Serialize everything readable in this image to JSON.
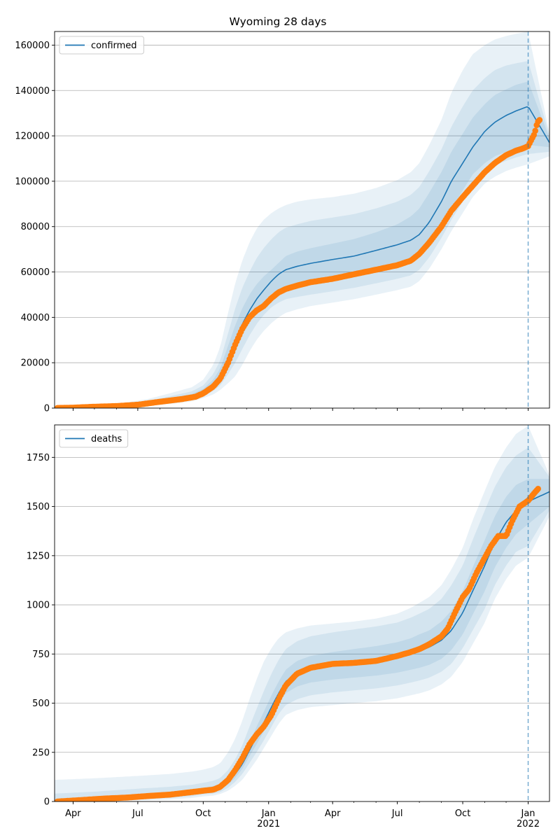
{
  "chart_data": [
    {
      "type": "line",
      "title": "Wyoming 28 days",
      "xlabel": "",
      "ylabel": "",
      "ylim": [
        0,
        166000
      ],
      "y_ticks": [
        0,
        20000,
        40000,
        60000,
        80000,
        100000,
        120000,
        140000,
        160000
      ],
      "y_tick_labels": [
        "0",
        "20000",
        "40000",
        "60000",
        "80000",
        "100000",
        "120000",
        "140000",
        "160000"
      ],
      "x_range": [
        "2020-03-06",
        "2022-01-31"
      ],
      "forecast_start": "2022-01-01",
      "grid": "horizontal",
      "legend_position": "top-left",
      "series": [
        {
          "name": "confirmed",
          "kind": "model-median",
          "color": "#1f77b4",
          "x": [
            "2020-03-06",
            "2020-04-15",
            "2020-06-01",
            "2020-07-15",
            "2020-08-15",
            "2020-09-15",
            "2020-10-01",
            "2020-10-15",
            "2020-10-25",
            "2020-11-05",
            "2020-11-15",
            "2020-11-25",
            "2020-12-05",
            "2020-12-15",
            "2020-12-25",
            "2021-01-05",
            "2021-01-15",
            "2021-01-25",
            "2021-02-10",
            "2021-03-01",
            "2021-04-01",
            "2021-05-01",
            "2021-06-01",
            "2021-07-01",
            "2021-07-20",
            "2021-08-01",
            "2021-08-15",
            "2021-09-01",
            "2021-09-15",
            "2021-10-01",
            "2021-10-15",
            "2021-11-01",
            "2021-11-15",
            "2021-12-01",
            "2021-12-15",
            "2022-01-01",
            "2022-01-31"
          ],
          "y": [
            100,
            300,
            700,
            2000,
            3500,
            5000,
            7000,
            10000,
            14000,
            22000,
            30000,
            37000,
            43000,
            48000,
            52000,
            56000,
            59000,
            61000,
            62500,
            63800,
            65500,
            67000,
            69500,
            72000,
            74000,
            76500,
            82000,
            91000,
            100000,
            108000,
            115000,
            122000,
            126000,
            129000,
            131000,
            133000,
            117000
          ],
          "band_1": {
            "lower": [
              0,
              200,
              500,
              1500,
              2800,
              4400,
              6200,
              9000,
              12000,
              18000,
              25000,
              32000,
              38000,
              43000,
              47000,
              50500,
              52000,
              53500,
              54500,
              55500,
              57000,
              58500,
              60500,
              62500,
              64000,
              66500,
              72000,
              80000,
              88000,
              96000,
              103000,
              108000,
              111000,
              113000,
              114500,
              116000,
              115000
            ],
            "upper": [
              200,
              450,
              1000,
              2600,
              4400,
              6200,
              8500,
              12500,
              17500,
              27500,
              36500,
              44000,
              50000,
              54500,
              58000,
              61000,
              64000,
              67000,
              69000,
              70500,
              72500,
              74500,
              77500,
              81000,
              84500,
              88000,
              95000,
              104000,
              113000,
              121000,
              128000,
              134000,
              138000,
              140500,
              142500,
              144000,
              119000
            ]
          },
          "band_2": {
            "lower": [
              0,
              100,
              350,
              1200,
              2300,
              3800,
              5400,
              7500,
              10000,
              15000,
              20000,
              26000,
              32000,
              37000,
              41000,
              44500,
              46500,
              48000,
              49000,
              50000,
              51500,
              53000,
              55000,
              57000,
              58500,
              61000,
              66500,
              75000,
              83000,
              91000,
              98000,
              104000,
              107000,
              109000,
              110500,
              112000,
              113000
            ],
            "upper": [
              300,
              600,
              1300,
              3200,
              5200,
              7400,
              10000,
              15000,
              21000,
              33000,
              44000,
              53000,
              60000,
              66000,
              70500,
              74500,
              77500,
              79500,
              81000,
              82500,
              84000,
              85500,
              88000,
              91000,
              94000,
              97500,
              104500,
              114000,
              124000,
              133000,
              140000,
              145500,
              149000,
              151000,
              152000,
              153000,
              120000
            ]
          },
          "band_3": {
            "lower": [
              0,
              50,
              200,
              900,
              1800,
              3000,
              4400,
              6000,
              8000,
              11000,
              14000,
              19000,
              25000,
              30000,
              34000,
              37500,
              40000,
              42000,
              43500,
              45000,
              46500,
              48000,
              50000,
              52000,
              53500,
              56000,
              61500,
              70000,
              78000,
              86000,
              93000,
              99000,
              102000,
              104500,
              106000,
              107500,
              111000
            ],
            "upper": [
              500,
              900,
              1800,
              4000,
              6500,
              9200,
              12500,
              19000,
              27000,
              42000,
              55000,
              65000,
              73000,
              79000,
              83000,
              86000,
              88000,
              89500,
              91000,
              92000,
              93000,
              94500,
              97000,
              100500,
              104000,
              108000,
              116000,
              127000,
              139000,
              149000,
              156000,
              160000,
              162500,
              164000,
              165000,
              166000,
              121000
            ]
          }
        },
        {
          "name": "",
          "kind": "observed",
          "color": "#ff7f0e",
          "x": [
            "2020-03-10",
            "2020-04-01",
            "2020-05-01",
            "2020-06-01",
            "2020-07-01",
            "2020-08-01",
            "2020-09-01",
            "2020-09-20",
            "2020-10-01",
            "2020-10-15",
            "2020-10-25",
            "2020-11-05",
            "2020-11-15",
            "2020-11-25",
            "2020-12-05",
            "2020-12-15",
            "2020-12-25",
            "2021-01-05",
            "2021-01-15",
            "2021-01-25",
            "2021-02-10",
            "2021-03-01",
            "2021-04-01",
            "2021-05-01",
            "2021-06-01",
            "2021-07-01",
            "2021-07-20",
            "2021-08-01",
            "2021-08-15",
            "2021-09-01",
            "2021-09-15",
            "2021-10-01",
            "2021-10-15",
            "2021-11-01",
            "2021-11-15",
            "2021-12-01",
            "2021-12-15",
            "2021-12-25",
            "2022-01-01",
            "2022-01-05",
            "2022-01-10",
            "2022-01-14",
            "2022-01-17"
          ],
          "y": [
            50,
            200,
            600,
            900,
            1500,
            2800,
            4000,
            5000,
            6500,
            9500,
            13000,
            20000,
            28000,
            35000,
            40000,
            43000,
            45000,
            48500,
            51000,
            52500,
            54000,
            55500,
            57000,
            59000,
            61000,
            63000,
            65000,
            68000,
            73000,
            80000,
            87000,
            93000,
            98000,
            104000,
            108000,
            111500,
            113500,
            114500,
            115500,
            118000,
            121000,
            126000,
            127000
          ]
        }
      ]
    },
    {
      "type": "line",
      "title": "",
      "xlabel": "",
      "ylabel": "",
      "ylim": [
        0,
        1915
      ],
      "y_ticks": [
        0,
        250,
        500,
        750,
        1000,
        1250,
        1500,
        1750
      ],
      "y_tick_labels": [
        "0",
        "250",
        "500",
        "750",
        "1000",
        "1250",
        "1500",
        "1750"
      ],
      "x_range": [
        "2020-03-06",
        "2022-01-31"
      ],
      "x_ticks": [
        "2020-04-01",
        "2020-07-01",
        "2020-10-01",
        "2021-01-01",
        "2021-04-01",
        "2021-07-01",
        "2021-10-01",
        "2022-01-01"
      ],
      "x_tick_labels": [
        "Apr",
        "Jul",
        "Oct",
        "Jan\n2021",
        "Apr",
        "Jul",
        "Oct",
        "Jan\n2022"
      ],
      "forecast_start": "2022-01-01",
      "grid": "horizontal",
      "legend_position": "top-left",
      "series": [
        {
          "name": "deaths",
          "kind": "model-median",
          "color": "#1f77b4",
          "x": [
            "2020-03-06",
            "2020-05-01",
            "2020-07-01",
            "2020-08-15",
            "2020-09-15",
            "2020-10-01",
            "2020-10-15",
            "2020-10-25",
            "2020-11-05",
            "2020-11-15",
            "2020-11-25",
            "2020-12-05",
            "2020-12-15",
            "2020-12-25",
            "2021-01-05",
            "2021-01-15",
            "2021-01-25",
            "2021-02-10",
            "2021-03-01",
            "2021-04-01",
            "2021-05-01",
            "2021-06-01",
            "2021-07-01",
            "2021-07-20",
            "2021-08-01",
            "2021-08-15",
            "2021-09-01",
            "2021-09-15",
            "2021-10-01",
            "2021-10-15",
            "2021-11-01",
            "2021-11-15",
            "2021-12-01",
            "2021-12-15",
            "2022-01-01",
            "2022-01-31"
          ],
          "y": [
            3,
            10,
            25,
            35,
            45,
            55,
            60,
            72,
            100,
            140,
            190,
            260,
            330,
            400,
            480,
            550,
            610,
            650,
            675,
            690,
            700,
            710,
            730,
            750,
            765,
            785,
            820,
            870,
            960,
            1070,
            1200,
            1320,
            1420,
            1480,
            1525,
            1575
          ],
          "band_1": {
            "lower": [
              0,
              5,
              15,
              25,
              35,
              45,
              50,
              60,
              85,
              120,
              165,
              230,
              290,
              355,
              430,
              500,
              550,
              585,
              605,
              620,
              630,
              640,
              655,
              670,
              680,
              695,
              725,
              770,
              850,
              950,
              1070,
              1190,
              1290,
              1360,
              1410,
              1500
            ],
            "upper": [
              10,
              20,
              35,
              47,
              58,
              70,
              78,
              92,
              125,
              170,
              225,
              300,
              380,
              455,
              540,
              610,
              670,
              715,
              740,
              760,
              775,
              790,
              810,
              830,
              850,
              870,
              915,
              970,
              1070,
              1190,
              1330,
              1450,
              1550,
              1610,
              1640,
              1640
            ]
          },
          "band_2": {
            "lower": [
              0,
              2,
              10,
              18,
              27,
              36,
              40,
              48,
              70,
              100,
              140,
              195,
              250,
              310,
              380,
              445,
              490,
              520,
              540,
              555,
              565,
              575,
              590,
              605,
              615,
              630,
              660,
              700,
              780,
              870,
              980,
              1100,
              1200,
              1270,
              1300,
              1480
            ],
            "upper": [
              40,
              50,
              65,
              75,
              85,
              95,
              105,
              120,
              160,
              215,
              285,
              380,
              470,
              560,
              650,
              720,
              775,
              815,
              840,
              860,
              875,
              890,
              910,
              935,
              955,
              980,
              1030,
              1100,
              1200,
              1330,
              1480,
              1600,
              1700,
              1760,
              1800,
              1650
            ]
          },
          "band_3": {
            "lower": [
              0,
              0,
              5,
              10,
              18,
              26,
              30,
              38,
              55,
              80,
              110,
              160,
              210,
              270,
              335,
              395,
              440,
              465,
              480,
              490,
              500,
              510,
              525,
              540,
              550,
              565,
              595,
              635,
              710,
              800,
              910,
              1030,
              1130,
              1200,
              1240,
              1450
            ],
            "upper": [
              110,
              118,
              130,
              140,
              152,
              162,
              175,
              195,
              250,
              320,
              410,
              520,
              620,
              710,
              780,
              830,
              860,
              880,
              895,
              905,
              915,
              930,
              955,
              985,
              1010,
              1040,
              1100,
              1180,
              1290,
              1430,
              1580,
              1700,
              1800,
              1870,
              1910,
              1660
            ]
          }
        },
        {
          "name": "",
          "kind": "observed",
          "color": "#ff7f0e",
          "x": [
            "2020-03-10",
            "2020-04-15",
            "2020-05-15",
            "2020-06-15",
            "2020-07-15",
            "2020-08-15",
            "2020-09-15",
            "2020-10-01",
            "2020-10-15",
            "2020-10-25",
            "2020-11-05",
            "2020-11-15",
            "2020-11-25",
            "2020-12-05",
            "2020-12-15",
            "2020-12-25",
            "2021-01-05",
            "2021-01-15",
            "2021-01-25",
            "2021-02-10",
            "2021-03-01",
            "2021-04-01",
            "2021-05-01",
            "2021-06-01",
            "2021-07-01",
            "2021-07-20",
            "2021-08-01",
            "2021-08-15",
            "2021-09-01",
            "2021-09-10",
            "2021-09-20",
            "2021-10-01",
            "2021-10-10",
            "2021-10-20",
            "2021-11-01",
            "2021-11-10",
            "2021-11-20",
            "2021-12-01",
            "2021-12-10",
            "2021-12-20",
            "2022-01-01",
            "2022-01-10",
            "2022-01-15"
          ],
          "y": [
            0,
            8,
            15,
            20,
            28,
            35,
            48,
            55,
            60,
            75,
            110,
            160,
            220,
            290,
            340,
            380,
            440,
            520,
            590,
            650,
            680,
            700,
            705,
            715,
            740,
            760,
            775,
            800,
            840,
            880,
            960,
            1040,
            1080,
            1160,
            1240,
            1300,
            1350,
            1350,
            1430,
            1500,
            1530,
            1570,
            1590
          ]
        }
      ]
    }
  ]
}
